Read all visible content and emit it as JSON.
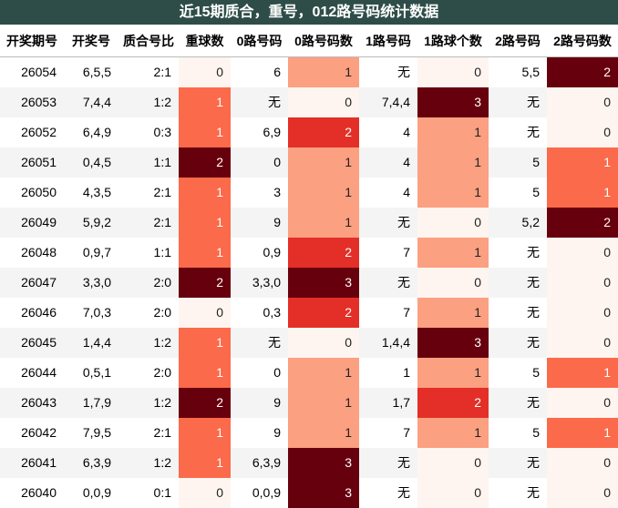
{
  "title": "近15期质合，重号，012路号码统计数据",
  "table": {
    "header": [
      "开奖期号",
      "开奖号",
      "质合号比",
      "重球数",
      "0路号码",
      "0路号码数",
      "1路号码",
      "1路球个数",
      "2路号码",
      "2路号码数"
    ],
    "rows": [
      [
        "26054",
        "6,5,5",
        "2:1",
        0,
        "6",
        1,
        "无",
        0,
        "5,5",
        2
      ],
      [
        "26053",
        "7,4,4",
        "1:2",
        1,
        "无",
        0,
        "7,4,4",
        3,
        "无",
        0
      ],
      [
        "26052",
        "6,4,9",
        "0:3",
        1,
        "6,9",
        2,
        "4",
        1,
        "无",
        0
      ],
      [
        "26051",
        "0,4,5",
        "1:1",
        2,
        "0",
        1,
        "4",
        1,
        "5",
        1
      ],
      [
        "26050",
        "4,3,5",
        "2:1",
        1,
        "3",
        1,
        "4",
        1,
        "5",
        1
      ],
      [
        "26049",
        "5,9,2",
        "2:1",
        1,
        "9",
        1,
        "无",
        0,
        "5,2",
        2
      ],
      [
        "26048",
        "0,9,7",
        "1:1",
        1,
        "0,9",
        2,
        "7",
        1,
        "无",
        0
      ],
      [
        "26047",
        "3,3,0",
        "2:0",
        2,
        "3,3,0",
        3,
        "无",
        0,
        "无",
        0
      ],
      [
        "26046",
        "7,0,3",
        "2:0",
        0,
        "0,3",
        2,
        "7",
        1,
        "无",
        0
      ],
      [
        "26045",
        "1,4,4",
        "1:2",
        1,
        "无",
        0,
        "1,4,4",
        3,
        "无",
        0
      ],
      [
        "26044",
        "0,5,1",
        "2:0",
        1,
        "0",
        1,
        "1",
        1,
        "5",
        1
      ],
      [
        "26043",
        "1,7,9",
        "1:2",
        2,
        "9",
        1,
        "1,7",
        2,
        "无",
        0
      ],
      [
        "26042",
        "7,9,5",
        "2:1",
        1,
        "9",
        1,
        "7",
        1,
        "5",
        1
      ],
      [
        "26041",
        "6,3,9",
        "1:2",
        1,
        "6,3,9",
        3,
        "无",
        0,
        "无",
        0
      ],
      [
        "26040",
        "0,0,9",
        "0:1",
        0,
        "0,0,9",
        3,
        "无",
        0,
        "无",
        0
      ]
    ]
  }
}
